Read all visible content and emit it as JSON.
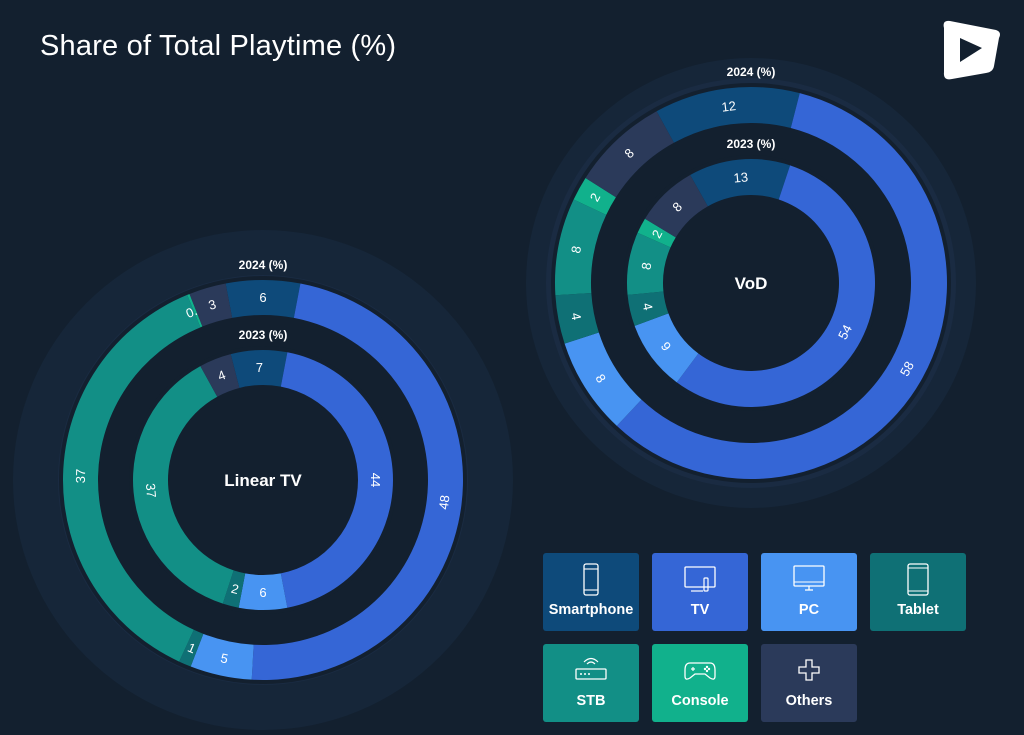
{
  "header": {
    "title": "Share of Total Playtime (%)"
  },
  "colors": {
    "background": "#13202f",
    "Smartphone": "#0e4a7a",
    "TV": "#3566d6",
    "PC": "#4894f2",
    "Tablet": "#0f7075",
    "STB": "#128f86",
    "Console": "#11b18c",
    "Others": "#2b3a5a"
  },
  "legend": {
    "items": [
      {
        "label": "Smartphone",
        "icon": "smartphone-icon"
      },
      {
        "label": "TV",
        "icon": "tv-icon"
      },
      {
        "label": "PC",
        "icon": "pc-monitor-icon"
      },
      {
        "label": "Tablet",
        "icon": "tablet-icon"
      },
      {
        "label": "STB",
        "icon": "set-top-box-icon"
      },
      {
        "label": "Console",
        "icon": "gamepad-icon"
      },
      {
        "label": "Others",
        "icon": "plus-icon"
      }
    ]
  },
  "chart_data": [
    {
      "type": "pie",
      "title": "Linear TV",
      "rings": [
        {
          "name": "2024 (%)",
          "segments": [
            {
              "category": "Smartphone",
              "value": 6
            },
            {
              "category": "TV",
              "value": 48
            },
            {
              "category": "PC",
              "value": 5
            },
            {
              "category": "Tablet",
              "value": 1
            },
            {
              "category": "STB",
              "value": 37
            },
            {
              "category": "Console",
              "value": 0.2
            },
            {
              "category": "Others",
              "value": 3
            }
          ]
        },
        {
          "name": "2023 (%)",
          "segments": [
            {
              "category": "Smartphone",
              "value": 7
            },
            {
              "category": "TV",
              "value": 44
            },
            {
              "category": "PC",
              "value": 6
            },
            {
              "category": "Tablet",
              "value": 2
            },
            {
              "category": "STB",
              "value": 37
            },
            {
              "category": "Others",
              "value": 4
            }
          ]
        }
      ]
    },
    {
      "type": "pie",
      "title": "VoD",
      "rings": [
        {
          "name": "2024 (%)",
          "segments": [
            {
              "category": "Smartphone",
              "value": 12
            },
            {
              "category": "TV",
              "value": 58
            },
            {
              "category": "PC",
              "value": 8
            },
            {
              "category": "Tablet",
              "value": 4
            },
            {
              "category": "STB",
              "value": 8
            },
            {
              "category": "Console",
              "value": 2
            },
            {
              "category": "Others",
              "value": 8
            }
          ]
        },
        {
          "name": "2023 (%)",
          "segments": [
            {
              "category": "Smartphone",
              "value": 13
            },
            {
              "category": "TV",
              "value": 54
            },
            {
              "category": "PC",
              "value": 9
            },
            {
              "category": "Tablet",
              "value": 4
            },
            {
              "category": "STB",
              "value": 8
            },
            {
              "category": "Console",
              "value": 2
            },
            {
              "category": "Others",
              "value": 8
            }
          ]
        }
      ]
    }
  ]
}
